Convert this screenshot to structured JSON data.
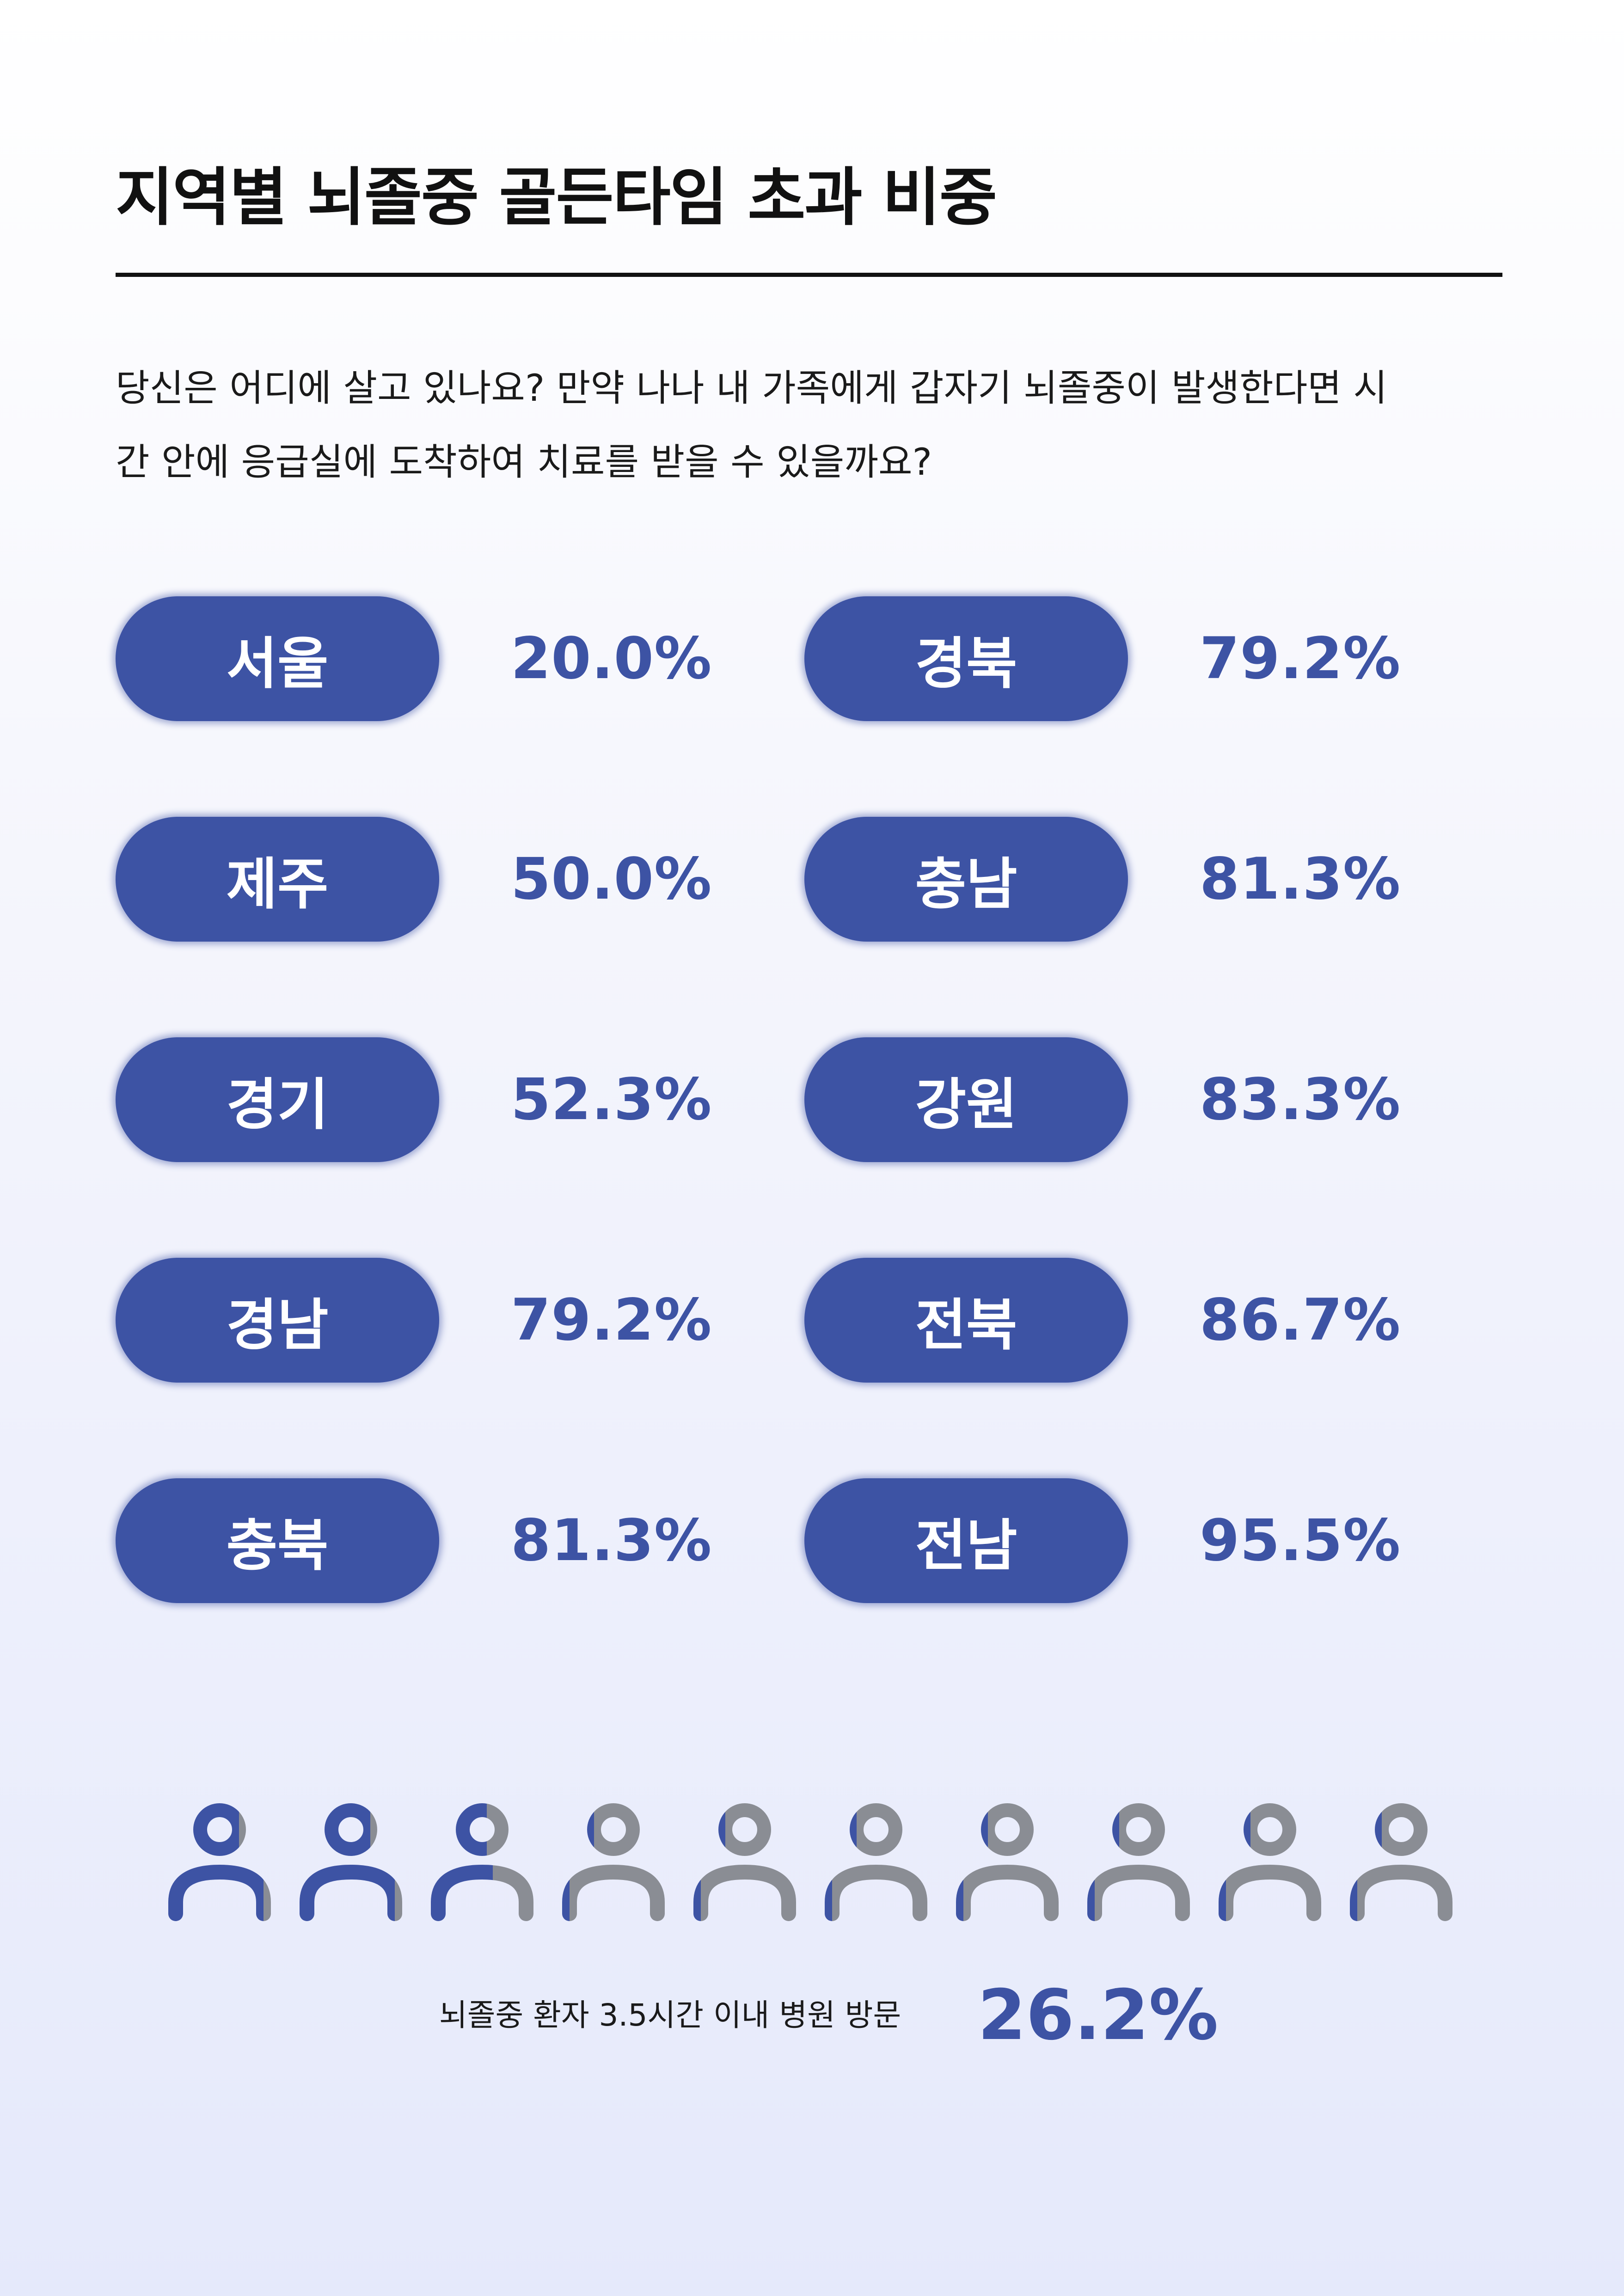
{
  "title": "지역별 뇌졸중 골든타임 초과 비중",
  "intro": {
    "line1": "당신은 어디에 살고 있나요? 만약 나나 내 가족에게 갑자기 뇌졸중이 발생한다면 시",
    "line2": "간 안에 응급실에 도착하여 치료를 받을 수 있을까요?"
  },
  "regions": [
    {
      "name": "서울",
      "value": "20.0%"
    },
    {
      "name": "경북",
      "value": "79.2%"
    },
    {
      "name": "제주",
      "value": "50.0%"
    },
    {
      "name": "충남",
      "value": "81.3%"
    },
    {
      "name": "경기",
      "value": "52.3%"
    },
    {
      "name": "강원",
      "value": "83.3%"
    },
    {
      "name": "경남",
      "value": "79.2%"
    },
    {
      "name": "전북",
      "value": "86.7%"
    },
    {
      "name": "충북",
      "value": "81.3%"
    },
    {
      "name": "전남",
      "value": "95.5%"
    }
  ],
  "people_chart": {
    "total_icons": 10,
    "filled_fraction": 0.262,
    "filled_color": "#3d53a4",
    "empty_color": "#8a8d94",
    "icon": "person-icon"
  },
  "footer": {
    "label": "뇌졸중 환자 3.5시간 이내 병원 방문",
    "value": "26.2%"
  },
  "colors": {
    "accent": "#3d53a4",
    "text": "#111111"
  }
}
